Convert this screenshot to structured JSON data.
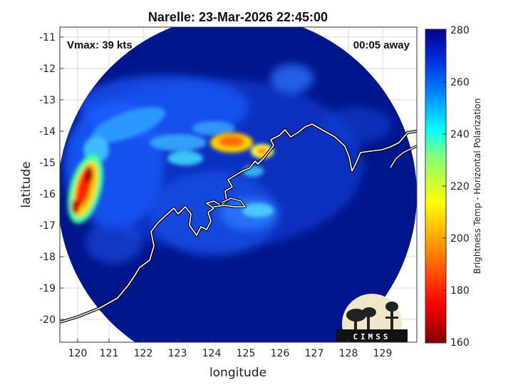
{
  "title": "Narelle: 23-Mar-2026 22:45:00",
  "vmax_label": "Vmax: 39 kts",
  "time_away_label": "00:05 away",
  "xlabel": "longitude",
  "ylabel": "latitude",
  "x_ticks": [
    "120",
    "121",
    "122",
    "123",
    "124",
    "125",
    "126",
    "127",
    "128",
    "129"
  ],
  "y_ticks": [
    "-11",
    "-12",
    "-13",
    "-14",
    "-15",
    "-16",
    "-17",
    "-18",
    "-19",
    "-20"
  ],
  "colorbar": {
    "label": "Brightness Temp - Horizontal Polarization",
    "ticks": [
      "280",
      "260",
      "240",
      "220",
      "200",
      "180",
      "160"
    ],
    "range": [
      160,
      280
    ]
  },
  "logo_text": "CIMSS",
  "colors": {
    "background_field": "#00168c",
    "coastline": "#ffffff",
    "grid": "#d9d9d9"
  },
  "map_data": {
    "lon_range": [
      119.5,
      129.8
    ],
    "lat_range": [
      -20.7,
      -10.7
    ],
    "features": [
      {
        "type": "blob",
        "lon": 120.3,
        "lat": -15.9,
        "value": 175
      },
      {
        "type": "blob",
        "lon": 124.5,
        "lat": -14.4,
        "value": 190
      },
      {
        "type": "blob",
        "lon": 125.7,
        "lat": -14.7,
        "value": 210
      }
    ]
  }
}
